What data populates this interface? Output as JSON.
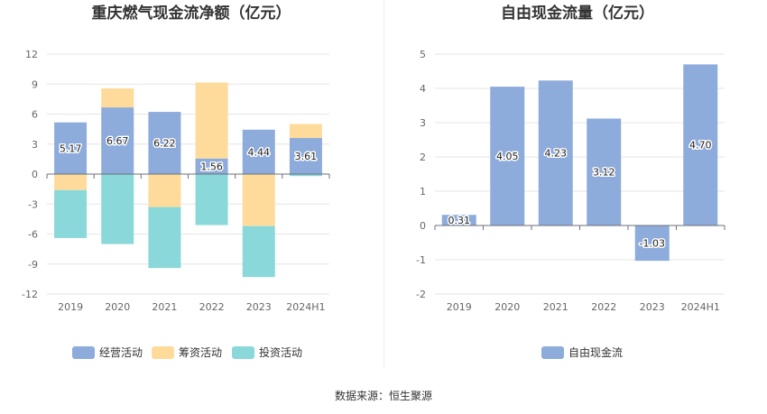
{
  "source": "数据来源：恒生聚源",
  "chart_data": [
    {
      "type": "bar",
      "stacked": true,
      "title": "重庆燃气现金流净额（亿元）",
      "categories": [
        "2019",
        "2020",
        "2021",
        "2022",
        "2023",
        "2024H1"
      ],
      "ylim": [
        -12,
        12
      ],
      "yticks": [
        12,
        9,
        6,
        3,
        0,
        -3,
        -6,
        -9,
        -12
      ],
      "grid": true,
      "legend_position": "bottom",
      "labeled_series": "经营活动",
      "series": [
        {
          "name": "经营活动",
          "color": "#8eacdb",
          "values": [
            5.17,
            6.67,
            6.22,
            1.56,
            4.44,
            3.61
          ]
        },
        {
          "name": "筹资活动",
          "color": "#fedb9b",
          "values": [
            -1.6,
            1.9,
            -3.3,
            7.6,
            -5.2,
            1.4
          ]
        },
        {
          "name": "投资活动",
          "color": "#8ad8da",
          "values": [
            -4.8,
            -7.0,
            -6.1,
            -5.1,
            -5.1,
            -0.2
          ]
        }
      ]
    },
    {
      "type": "bar",
      "title": "自由现金流量（亿元）",
      "categories": [
        "2019",
        "2020",
        "2021",
        "2022",
        "2023",
        "2024H1"
      ],
      "ylim": [
        -2,
        5
      ],
      "yticks": [
        5,
        4,
        3,
        2,
        1,
        0,
        -1,
        -2
      ],
      "grid": true,
      "legend_position": "bottom",
      "series": [
        {
          "name": "自由现金流",
          "color": "#8eacdb",
          "values": [
            0.31,
            4.05,
            4.23,
            3.12,
            -1.03,
            4.7
          ]
        }
      ]
    }
  ]
}
